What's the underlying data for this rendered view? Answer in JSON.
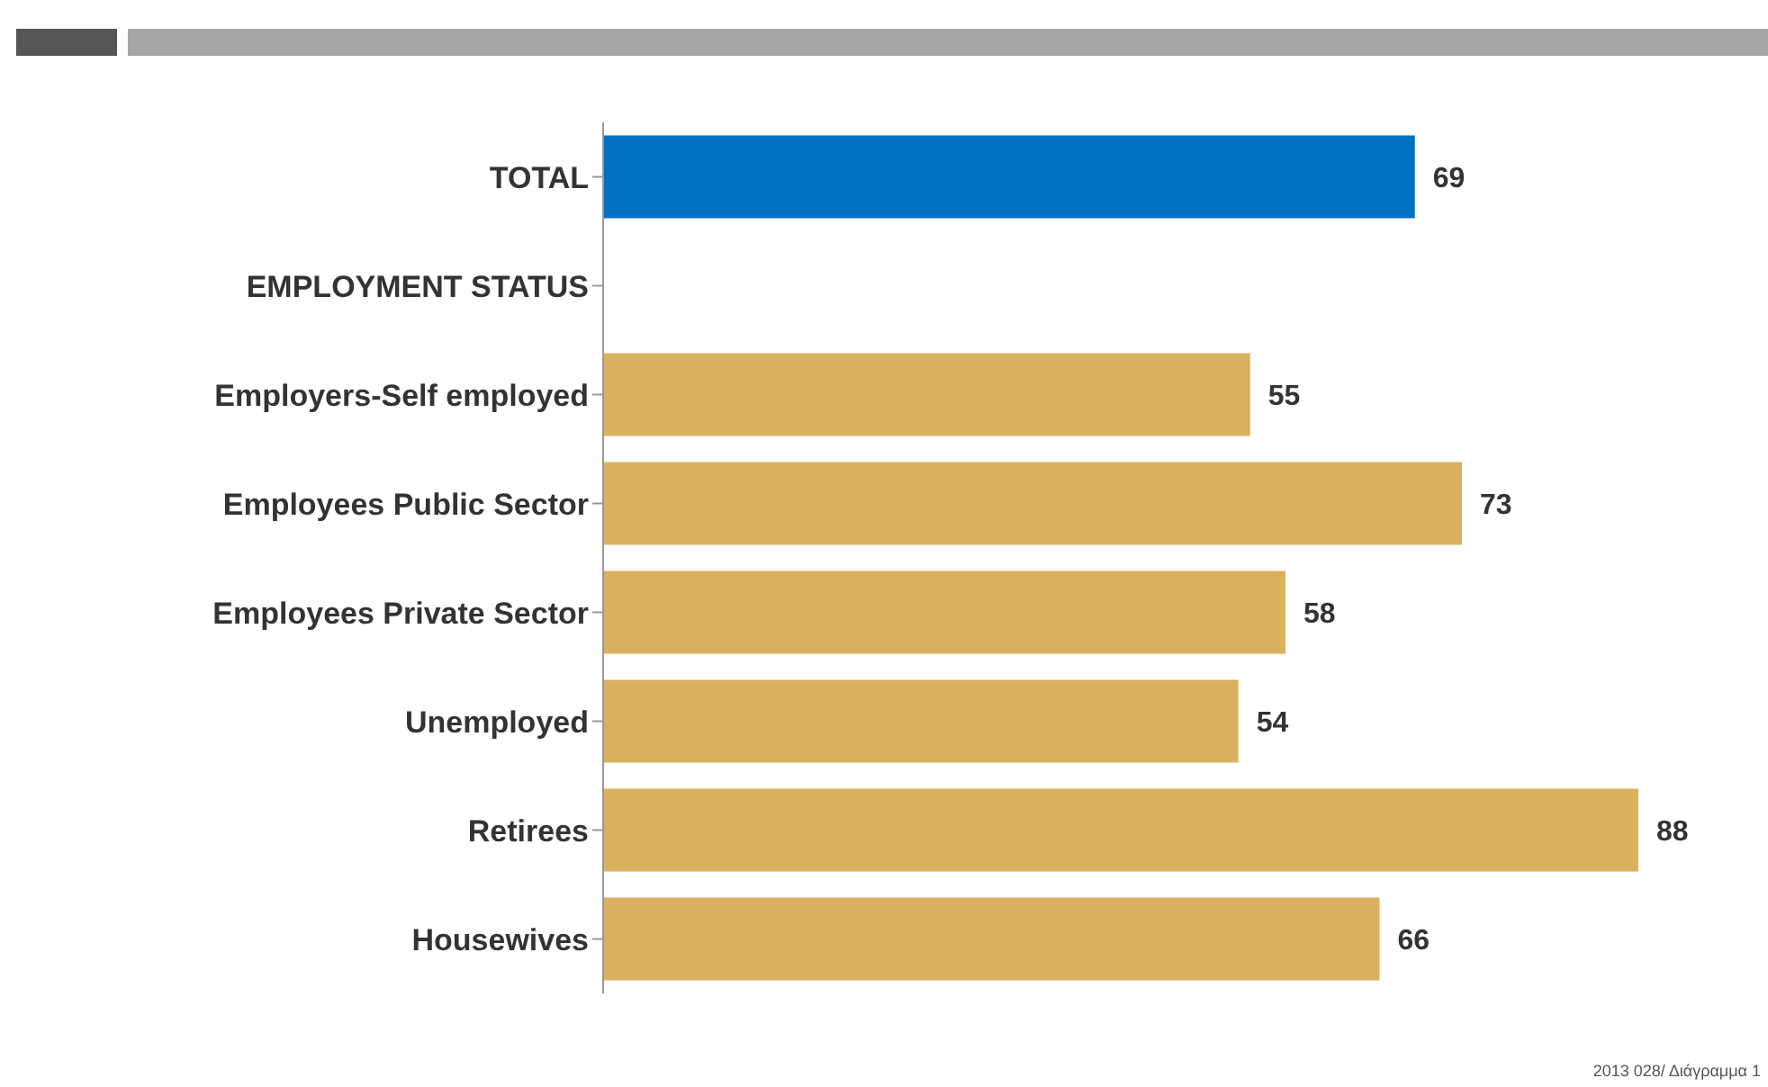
{
  "chart_data": {
    "type": "bar",
    "orientation": "horizontal",
    "categories": [
      "TOTAL",
      "EMPLOYMENT STATUS",
      "Employers-Self employed",
      "Employees Public Sector",
      "Employees Private Sector",
      "Unemployed",
      "Retirees",
      "Housewives"
    ],
    "values": [
      69,
      null,
      55,
      73,
      58,
      54,
      88,
      66
    ],
    "colors": [
      "#0070c0",
      "#d9b15f",
      "#d9b15f",
      "#d9b15f",
      "#d9b15f",
      "#d9b15f",
      "#d9b15f",
      "#d9b15f"
    ],
    "data_labels": true,
    "grid": false,
    "legend": false,
    "annotations": [
      "2013 028/ Διάγραμμα 1"
    ]
  }
}
